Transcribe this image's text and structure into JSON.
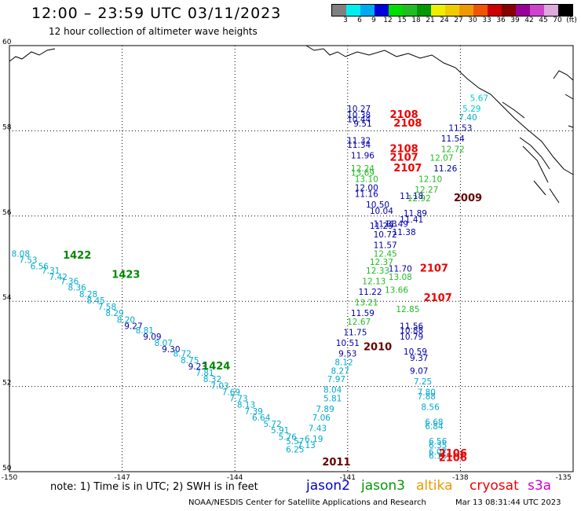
{
  "header": {
    "title": "12:00 – 23:59 UTC 03/11/2023",
    "subtitle": "12 hour collection of altimeter wave heights"
  },
  "colorbar": {
    "colors": [
      "#808080",
      "#00eeee",
      "#00aaee",
      "#0000dd",
      "#00dd00",
      "#22bb22",
      "#009900",
      "#eeee00",
      "#eecc00",
      "#ee9900",
      "#ee5500",
      "#cc0000",
      "#880000",
      "#990099",
      "#cc44cc",
      "#ddaadd",
      "#000000"
    ],
    "labels": [
      "3",
      "6",
      "9",
      "12",
      "15",
      "18",
      "21",
      "24",
      "27",
      "30",
      "33",
      "36",
      "39",
      "42",
      "45",
      "70",
      "(ft)"
    ]
  },
  "axes": {
    "y_labels": [
      "60",
      "58",
      "56",
      "54",
      "52",
      "50"
    ],
    "x_labels": [
      "-150",
      "-147",
      "-144",
      "-141",
      "-138",
      "-135"
    ]
  },
  "track_labels": [
    {
      "text": "1422",
      "lon": -148.2,
      "lat": 55.0,
      "color": "#008800"
    },
    {
      "text": "1423",
      "lon": -146.9,
      "lat": 54.55,
      "color": "#008800"
    },
    {
      "text": "1424",
      "lon": -144.5,
      "lat": 52.4,
      "color": "#008800"
    },
    {
      "text": "2011",
      "lon": -141.3,
      "lat": 50.15,
      "color": "#660000"
    },
    {
      "text": "2010",
      "lon": -140.2,
      "lat": 52.85,
      "color": "#660000"
    },
    {
      "text": "2009",
      "lon": -137.8,
      "lat": 56.35,
      "color": "#660000"
    },
    {
      "text": "2108",
      "lon": -139.5,
      "lat": 58.3,
      "color": "#ee0000"
    },
    {
      "text": "2108",
      "lon": -139.4,
      "lat": 58.1,
      "color": "#ee0000"
    },
    {
      "text": "2108",
      "lon": -139.5,
      "lat": 57.5,
      "color": "#ee0000"
    },
    {
      "text": "2107",
      "lon": -139.5,
      "lat": 57.3,
      "color": "#ee0000"
    },
    {
      "text": "2107",
      "lon": -139.4,
      "lat": 57.05,
      "color": "#ee0000"
    },
    {
      "text": "2107",
      "lon": -138.7,
      "lat": 54.7,
      "color": "#ee0000"
    },
    {
      "text": "2107",
      "lon": -138.6,
      "lat": 54.0,
      "color": "#ee0000"
    },
    {
      "text": "2106",
      "lon": -138.2,
      "lat": 50.35,
      "color": "#ee0000"
    },
    {
      "text": "2106",
      "lon": -138.2,
      "lat": 50.25,
      "color": "#ee0000"
    }
  ],
  "readings": [
    {
      "text": "8.08",
      "lon": -149.7,
      "lat": 55.05,
      "color": "#00aacc"
    },
    {
      "text": "7.53",
      "lon": -149.5,
      "lat": 54.9,
      "color": "#00aacc"
    },
    {
      "text": "6.56",
      "lon": -149.2,
      "lat": 54.75,
      "color": "#00aacc"
    },
    {
      "text": "7.31",
      "lon": -148.9,
      "lat": 54.65,
      "color": "#00aacc"
    },
    {
      "text": "7.42",
      "lon": -148.7,
      "lat": 54.5,
      "color": "#00aacc"
    },
    {
      "text": "7.36",
      "lon": -148.4,
      "lat": 54.4,
      "color": "#00aacc"
    },
    {
      "text": "8.36",
      "lon": -148.2,
      "lat": 54.25,
      "color": "#00aacc"
    },
    {
      "text": "8.28",
      "lon": -147.9,
      "lat": 54.1,
      "color": "#00aacc"
    },
    {
      "text": "8.45",
      "lon": -147.7,
      "lat": 53.95,
      "color": "#00aacc"
    },
    {
      "text": "7.58",
      "lon": -147.4,
      "lat": 53.8,
      "color": "#00aacc"
    },
    {
      "text": "8.29",
      "lon": -147.2,
      "lat": 53.65,
      "color": "#00aacc"
    },
    {
      "text": "8.20",
      "lon": -146.9,
      "lat": 53.5,
      "color": "#00aacc"
    },
    {
      "text": "9.27",
      "lon": -146.7,
      "lat": 53.35,
      "color": "#0000aa"
    },
    {
      "text": "8.81",
      "lon": -146.4,
      "lat": 53.25,
      "color": "#00aacc"
    },
    {
      "text": "9.09",
      "lon": -146.2,
      "lat": 53.1,
      "color": "#0000aa"
    },
    {
      "text": "8.07",
      "lon": -145.9,
      "lat": 52.95,
      "color": "#00aacc"
    },
    {
      "text": "9.30",
      "lon": -145.7,
      "lat": 52.8,
      "color": "#0000aa"
    },
    {
      "text": "8.72",
      "lon": -145.4,
      "lat": 52.7,
      "color": "#00aacc"
    },
    {
      "text": "8.75",
      "lon": -145.2,
      "lat": 52.55,
      "color": "#00aacc"
    },
    {
      "text": "9.23",
      "lon": -145.0,
      "lat": 52.4,
      "color": "#0000aa"
    },
    {
      "text": "7.81",
      "lon": -144.8,
      "lat": 52.25,
      "color": "#00aacc"
    },
    {
      "text": "8.32",
      "lon": -144.6,
      "lat": 52.1,
      "color": "#00aacc"
    },
    {
      "text": "7.03",
      "lon": -144.4,
      "lat": 51.95,
      "color": "#00aacc"
    },
    {
      "text": "7.69",
      "lon": -144.1,
      "lat": 51.8,
      "color": "#00aacc"
    },
    {
      "text": "7.73",
      "lon": -143.9,
      "lat": 51.65,
      "color": "#00aacc"
    },
    {
      "text": "8.13",
      "lon": -143.7,
      "lat": 51.5,
      "color": "#00aacc"
    },
    {
      "text": "7.39",
      "lon": -143.5,
      "lat": 51.35,
      "color": "#00aacc"
    },
    {
      "text": "6.64",
      "lon": -143.3,
      "lat": 51.2,
      "color": "#00aacc"
    },
    {
      "text": "5.72",
      "lon": -143.0,
      "lat": 51.05,
      "color": "#00aacc"
    },
    {
      "text": "5.91",
      "lon": -142.8,
      "lat": 50.9,
      "color": "#00aacc"
    },
    {
      "text": "5.76",
      "lon": -142.6,
      "lat": 50.75,
      "color": "#00aacc"
    },
    {
      "text": "5.57",
      "lon": -142.4,
      "lat": 50.65,
      "color": "#00aacc"
    },
    {
      "text": "7.13",
      "lon": -142.1,
      "lat": 50.55,
      "color": "#00aacc"
    },
    {
      "text": "6.25",
      "lon": -142.4,
      "lat": 50.45,
      "color": "#00aacc"
    },
    {
      "text": "6.19",
      "lon": -141.9,
      "lat": 50.7,
      "color": "#00aacc"
    },
    {
      "text": "7.43",
      "lon": -141.8,
      "lat": 50.95,
      "color": "#00aacc"
    },
    {
      "text": "7.06",
      "lon": -141.7,
      "lat": 51.2,
      "color": "#00aacc"
    },
    {
      "text": "7.89",
      "lon": -141.6,
      "lat": 51.4,
      "color": "#00aacc"
    },
    {
      "text": "5.81",
      "lon": -141.4,
      "lat": 51.65,
      "color": "#00aacc"
    },
    {
      "text": "8.04",
      "lon": -141.4,
      "lat": 51.85,
      "color": "#00aacc"
    },
    {
      "text": "7.97",
      "lon": -141.3,
      "lat": 52.1,
      "color": "#00aacc"
    },
    {
      "text": "8.27",
      "lon": -141.2,
      "lat": 52.3,
      "color": "#00aacc"
    },
    {
      "text": "8.12",
      "lon": -141.1,
      "lat": 52.5,
      "color": "#00aacc"
    },
    {
      "text": "9.53",
      "lon": -141.0,
      "lat": 52.7,
      "color": "#0000aa"
    },
    {
      "text": "10.51",
      "lon": -141.0,
      "lat": 52.95,
      "color": "#0000aa"
    },
    {
      "text": "11.75",
      "lon": -140.8,
      "lat": 53.2,
      "color": "#0000aa"
    },
    {
      "text": "12.67",
      "lon": -140.7,
      "lat": 53.45,
      "color": "#22bb22"
    },
    {
      "text": "11.59",
      "lon": -140.6,
      "lat": 53.65,
      "color": "#0000aa"
    },
    {
      "text": "13.21",
      "lon": -140.5,
      "lat": 53.9,
      "color": "#22bb22"
    },
    {
      "text": "11.22",
      "lon": -140.4,
      "lat": 54.15,
      "color": "#0000aa"
    },
    {
      "text": "12.13",
      "lon": -140.3,
      "lat": 54.4,
      "color": "#22bb22"
    },
    {
      "text": "12.33",
      "lon": -140.2,
      "lat": 54.65,
      "color": "#22bb22"
    },
    {
      "text": "12.37",
      "lon": -140.1,
      "lat": 54.85,
      "color": "#22bb22"
    },
    {
      "text": "12.45",
      "lon": -140.0,
      "lat": 55.05,
      "color": "#22bb22"
    },
    {
      "text": "11.57",
      "lon": -140.0,
      "lat": 55.25,
      "color": "#0000aa"
    },
    {
      "text": "10.72",
      "lon": -140.0,
      "lat": 55.5,
      "color": "#0000aa"
    },
    {
      "text": "11.29",
      "lon": -140.1,
      "lat": 55.7,
      "color": "#0000aa"
    },
    {
      "text": "11.33",
      "lon": -140.0,
      "lat": 55.75,
      "color": "#0000aa"
    },
    {
      "text": "11.49",
      "lon": -139.7,
      "lat": 55.75,
      "color": "#0000aa"
    },
    {
      "text": "10.50",
      "lon": -140.2,
      "lat": 56.2,
      "color": "#0000aa"
    },
    {
      "text": "10.04",
      "lon": -140.1,
      "lat": 56.05,
      "color": "#0000aa"
    },
    {
      "text": "11.16",
      "lon": -140.5,
      "lat": 56.45,
      "color": "#0000aa"
    },
    {
      "text": "12.00",
      "lon": -140.5,
      "lat": 56.6,
      "color": "#0000aa"
    },
    {
      "text": "13.10",
      "lon": -140.5,
      "lat": 56.8,
      "color": "#22bb22"
    },
    {
      "text": "13.69",
      "lon": -140.6,
      "lat": 56.95,
      "color": "#22bb22"
    },
    {
      "text": "12.24",
      "lon": -140.6,
      "lat": 57.05,
      "color": "#22bb22"
    },
    {
      "text": "11.96",
      "lon": -140.6,
      "lat": 57.35,
      "color": "#0000aa"
    },
    {
      "text": "11.34",
      "lon": -140.7,
      "lat": 57.6,
      "color": "#0000aa"
    },
    {
      "text": "11.32",
      "lon": -140.7,
      "lat": 57.7,
      "color": "#0000aa"
    },
    {
      "text": "9.51",
      "lon": -140.6,
      "lat": 58.1,
      "color": "#0000aa"
    },
    {
      "text": "10.44",
      "lon": -140.7,
      "lat": 58.2,
      "color": "#0000aa"
    },
    {
      "text": "10.38",
      "lon": -140.7,
      "lat": 58.3,
      "color": "#0000aa"
    },
    {
      "text": "10.27",
      "lon": -140.7,
      "lat": 58.45,
      "color": "#0000aa"
    },
    {
      "text": "5.67",
      "lon": -137.5,
      "lat": 58.7,
      "color": "#00cccc"
    },
    {
      "text": "5.29",
      "lon": -137.7,
      "lat": 58.45,
      "color": "#00cccc"
    },
    {
      "text": "7.40",
      "lon": -137.8,
      "lat": 58.25,
      "color": "#00aacc"
    },
    {
      "text": "11.53",
      "lon": -138.0,
      "lat": 58.0,
      "color": "#0000aa"
    },
    {
      "text": "11.54",
      "lon": -138.2,
      "lat": 57.75,
      "color": "#0000aa"
    },
    {
      "text": "12.72",
      "lon": -138.2,
      "lat": 57.5,
      "color": "#22bb22"
    },
    {
      "text": "12.07",
      "lon": -138.5,
      "lat": 57.3,
      "color": "#22bb22"
    },
    {
      "text": "11.26",
      "lon": -138.4,
      "lat": 57.05,
      "color": "#0000aa"
    },
    {
      "text": "12.10",
      "lon": -138.8,
      "lat": 56.8,
      "color": "#22bb22"
    },
    {
      "text": "12.27",
      "lon": -138.9,
      "lat": 56.55,
      "color": "#22bb22"
    },
    {
      "text": "12.92",
      "lon": -139.1,
      "lat": 56.35,
      "color": "#22bb22"
    },
    {
      "text": "11.18",
      "lon": -139.3,
      "lat": 56.4,
      "color": "#0000aa"
    },
    {
      "text": "11.89",
      "lon": -139.2,
      "lat": 56.0,
      "color": "#0000aa"
    },
    {
      "text": "11.41",
      "lon": -139.3,
      "lat": 55.85,
      "color": "#0000aa"
    },
    {
      "text": "11.38",
      "lon": -139.5,
      "lat": 55.55,
      "color": "#0000aa"
    },
    {
      "text": "11.70",
      "lon": -139.6,
      "lat": 54.7,
      "color": "#0000aa"
    },
    {
      "text": "13.08",
      "lon": -139.6,
      "lat": 54.5,
      "color": "#22bb22"
    },
    {
      "text": "13.66",
      "lon": -139.7,
      "lat": 54.2,
      "color": "#22bb22"
    },
    {
      "text": "12.85",
      "lon": -139.4,
      "lat": 53.75,
      "color": "#22bb22"
    },
    {
      "text": "11.56",
      "lon": -139.3,
      "lat": 53.35,
      "color": "#0000aa"
    },
    {
      "text": "10.88",
      "lon": -139.3,
      "lat": 53.25,
      "color": "#0000aa"
    },
    {
      "text": "10.79",
      "lon": -139.3,
      "lat": 53.1,
      "color": "#0000aa"
    },
    {
      "text": "10.59",
      "lon": -139.2,
      "lat": 52.75,
      "color": "#0000aa"
    },
    {
      "text": "9.37",
      "lon": -139.1,
      "lat": 52.6,
      "color": "#0000aa"
    },
    {
      "text": "9.07",
      "lon": -139.1,
      "lat": 52.3,
      "color": "#0000aa"
    },
    {
      "text": "7.25",
      "lon": -139.0,
      "lat": 52.05,
      "color": "#00aacc"
    },
    {
      "text": "7.80",
      "lon": -138.9,
      "lat": 51.8,
      "color": "#00aacc"
    },
    {
      "text": "7.88",
      "lon": -138.9,
      "lat": 51.7,
      "color": "#00aacc"
    },
    {
      "text": "8.56",
      "lon": -138.8,
      "lat": 51.45,
      "color": "#00aacc"
    },
    {
      "text": "6.68",
      "lon": -138.7,
      "lat": 51.1,
      "color": "#00aacc"
    },
    {
      "text": "6.84",
      "lon": -138.7,
      "lat": 51.0,
      "color": "#00aacc"
    },
    {
      "text": "6.56",
      "lon": -138.6,
      "lat": 50.65,
      "color": "#00aacc"
    },
    {
      "text": "6.35",
      "lon": -138.6,
      "lat": 50.55,
      "color": "#00aacc"
    },
    {
      "text": "6.07",
      "lon": -138.6,
      "lat": 50.4,
      "color": "#00aacc"
    },
    {
      "text": "6.16",
      "lon": -138.6,
      "lat": 50.3,
      "color": "#00aacc"
    }
  ],
  "footer": {
    "note": "note: 1) Time is in UTC; 2) SWH is in feet",
    "satellites": [
      {
        "name": "jason2",
        "color": "#0000cc"
      },
      {
        "name": "jason3",
        "color": "#009900"
      },
      {
        "name": "altika",
        "color": "#ee9900"
      },
      {
        "name": "cryosat",
        "color": "#ee0000"
      },
      {
        "name": "s3a",
        "color": "#cc00cc"
      }
    ],
    "credit": "NOAA/NESDIS Center for Satellite Applications and Research",
    "timestamp": "Mar 13 08:31:44 UTC 2023"
  }
}
